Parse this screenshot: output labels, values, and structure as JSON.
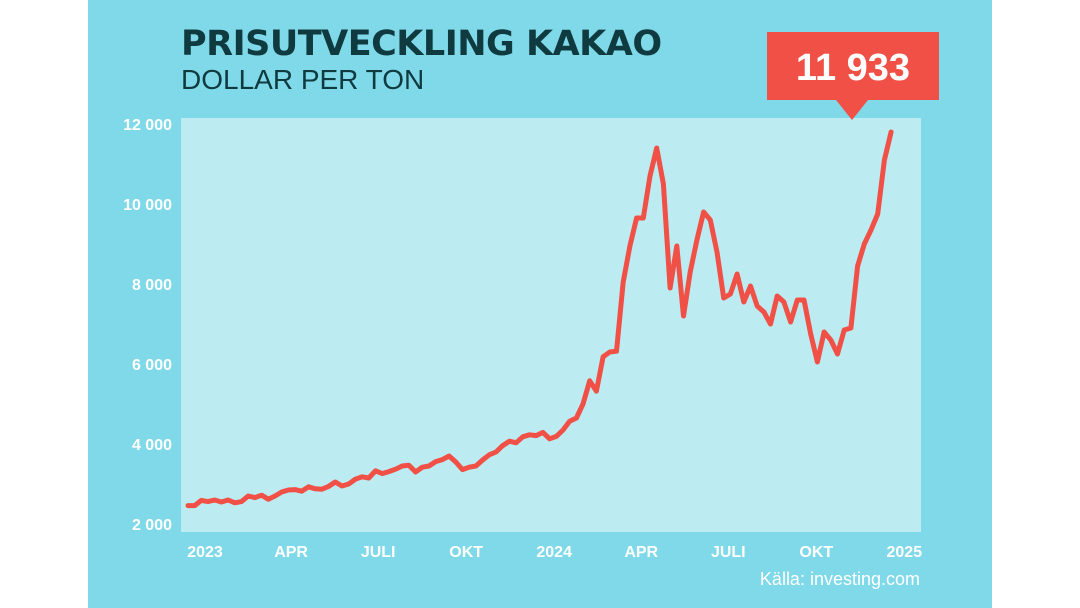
{
  "chart_data": {
    "type": "line",
    "title": "PRISUTVECKLING KAKAO",
    "subtitle": "DOLLAR PER TON",
    "source": "Källa: investing.com",
    "ylim": [
      2000,
      12000
    ],
    "xlim": [
      "2023-01-01",
      "2025-01-31"
    ],
    "y_ticks": [
      {
        "value": 2000,
        "label": "2 000"
      },
      {
        "value": 4000,
        "label": "4 000"
      },
      {
        "value": 6000,
        "label": "6 000"
      },
      {
        "value": 8000,
        "label": "8 000"
      },
      {
        "value": 10000,
        "label": "10 000"
      },
      {
        "value": 12000,
        "label": "12 000"
      }
    ],
    "x_ticks": [
      {
        "date": "2023-01-01",
        "label": "2023"
      },
      {
        "date": "2023-04-01",
        "label": "APR"
      },
      {
        "date": "2023-07-01",
        "label": "JULI"
      },
      {
        "date": "2023-10-01",
        "label": "OKT"
      },
      {
        "date": "2024-01-01",
        "label": "2024"
      },
      {
        "date": "2024-04-01",
        "label": "APR"
      },
      {
        "date": "2024-07-01",
        "label": "JULI"
      },
      {
        "date": "2024-10-01",
        "label": "OKT"
      },
      {
        "date": "2025-01-01",
        "label": "2025"
      }
    ],
    "callout": {
      "label": "11 933",
      "date": "2024-12-18",
      "value": 11800
    },
    "grid": false,
    "line_color": "#f05045",
    "plot_background": "#bdebf2",
    "card_background": "#7fd9e8",
    "series": [
      {
        "points": [
          [
            "2023-01-02",
            2460
          ],
          [
            "2023-01-09",
            2460
          ],
          [
            "2023-01-16",
            2590
          ],
          [
            "2023-01-23",
            2560
          ],
          [
            "2023-01-30",
            2600
          ],
          [
            "2023-02-06",
            2550
          ],
          [
            "2023-02-13",
            2600
          ],
          [
            "2023-02-20",
            2530
          ],
          [
            "2023-02-27",
            2560
          ],
          [
            "2023-03-06",
            2700
          ],
          [
            "2023-03-13",
            2660
          ],
          [
            "2023-03-20",
            2720
          ],
          [
            "2023-03-27",
            2620
          ],
          [
            "2023-04-03",
            2700
          ],
          [
            "2023-04-10",
            2800
          ],
          [
            "2023-04-17",
            2850
          ],
          [
            "2023-04-24",
            2860
          ],
          [
            "2023-05-01",
            2820
          ],
          [
            "2023-05-08",
            2930
          ],
          [
            "2023-05-15",
            2880
          ],
          [
            "2023-05-22",
            2870
          ],
          [
            "2023-05-29",
            2940
          ],
          [
            "2023-06-05",
            3050
          ],
          [
            "2023-06-12",
            2950
          ],
          [
            "2023-06-19",
            3000
          ],
          [
            "2023-06-26",
            3120
          ],
          [
            "2023-07-03",
            3180
          ],
          [
            "2023-07-10",
            3150
          ],
          [
            "2023-07-17",
            3330
          ],
          [
            "2023-07-24",
            3260
          ],
          [
            "2023-07-31",
            3310
          ],
          [
            "2023-08-07",
            3370
          ],
          [
            "2023-08-14",
            3450
          ],
          [
            "2023-08-21",
            3470
          ],
          [
            "2023-08-28",
            3300
          ],
          [
            "2023-09-04",
            3420
          ],
          [
            "2023-09-11",
            3450
          ],
          [
            "2023-09-18",
            3560
          ],
          [
            "2023-09-25",
            3610
          ],
          [
            "2023-10-02",
            3700
          ],
          [
            "2023-10-09",
            3550
          ],
          [
            "2023-10-16",
            3360
          ],
          [
            "2023-10-23",
            3420
          ],
          [
            "2023-10-30",
            3450
          ],
          [
            "2023-11-06",
            3600
          ],
          [
            "2023-11-13",
            3730
          ],
          [
            "2023-11-20",
            3800
          ],
          [
            "2023-11-27",
            3960
          ],
          [
            "2023-12-04",
            4070
          ],
          [
            "2023-12-11",
            4030
          ],
          [
            "2023-12-18",
            4180
          ],
          [
            "2023-12-25",
            4230
          ],
          [
            "2024-01-01",
            4210
          ],
          [
            "2024-01-08",
            4290
          ],
          [
            "2024-01-15",
            4130
          ],
          [
            "2024-01-22",
            4190
          ],
          [
            "2024-01-29",
            4350
          ],
          [
            "2024-02-05",
            4570
          ],
          [
            "2024-02-12",
            4650
          ],
          [
            "2024-02-19",
            5000
          ],
          [
            "2024-02-26",
            5580
          ],
          [
            "2024-03-04",
            5320
          ],
          [
            "2024-03-11",
            6180
          ],
          [
            "2024-03-18",
            6300
          ],
          [
            "2024-03-25",
            6320
          ],
          [
            "2024-04-01",
            8050
          ],
          [
            "2024-04-08",
            8950
          ],
          [
            "2024-04-15",
            9650
          ],
          [
            "2024-04-22",
            9650
          ],
          [
            "2024-04-29",
            10700
          ],
          [
            "2024-05-06",
            11400
          ],
          [
            "2024-05-13",
            10500
          ],
          [
            "2024-05-20",
            7900
          ],
          [
            "2024-05-27",
            8950
          ],
          [
            "2024-06-03",
            7200
          ],
          [
            "2024-06-10",
            8300
          ],
          [
            "2024-06-17",
            9100
          ],
          [
            "2024-06-24",
            9800
          ],
          [
            "2024-07-01",
            9600
          ],
          [
            "2024-07-08",
            8800
          ],
          [
            "2024-07-15",
            7650
          ],
          [
            "2024-07-22",
            7750
          ],
          [
            "2024-07-29",
            8250
          ],
          [
            "2024-08-05",
            7550
          ],
          [
            "2024-08-12",
            7950
          ],
          [
            "2024-08-19",
            7450
          ],
          [
            "2024-08-26",
            7300
          ],
          [
            "2024-09-02",
            7000
          ],
          [
            "2024-09-09",
            7700
          ],
          [
            "2024-09-16",
            7550
          ],
          [
            "2024-09-23",
            7050
          ],
          [
            "2024-09-30",
            7600
          ],
          [
            "2024-10-07",
            7600
          ],
          [
            "2024-10-14",
            6750
          ],
          [
            "2024-10-21",
            6050
          ],
          [
            "2024-10-28",
            6800
          ],
          [
            "2024-11-04",
            6600
          ],
          [
            "2024-11-11",
            6250
          ],
          [
            "2024-11-18",
            6850
          ],
          [
            "2024-11-25",
            6900
          ],
          [
            "2024-12-02",
            8450
          ],
          [
            "2024-12-09",
            9000
          ],
          [
            "2024-12-16",
            9350
          ],
          [
            "2024-12-23",
            9750
          ],
          [
            "2024-12-30",
            11100
          ],
          [
            "2025-01-06",
            11800
          ]
        ]
      }
    ]
  }
}
